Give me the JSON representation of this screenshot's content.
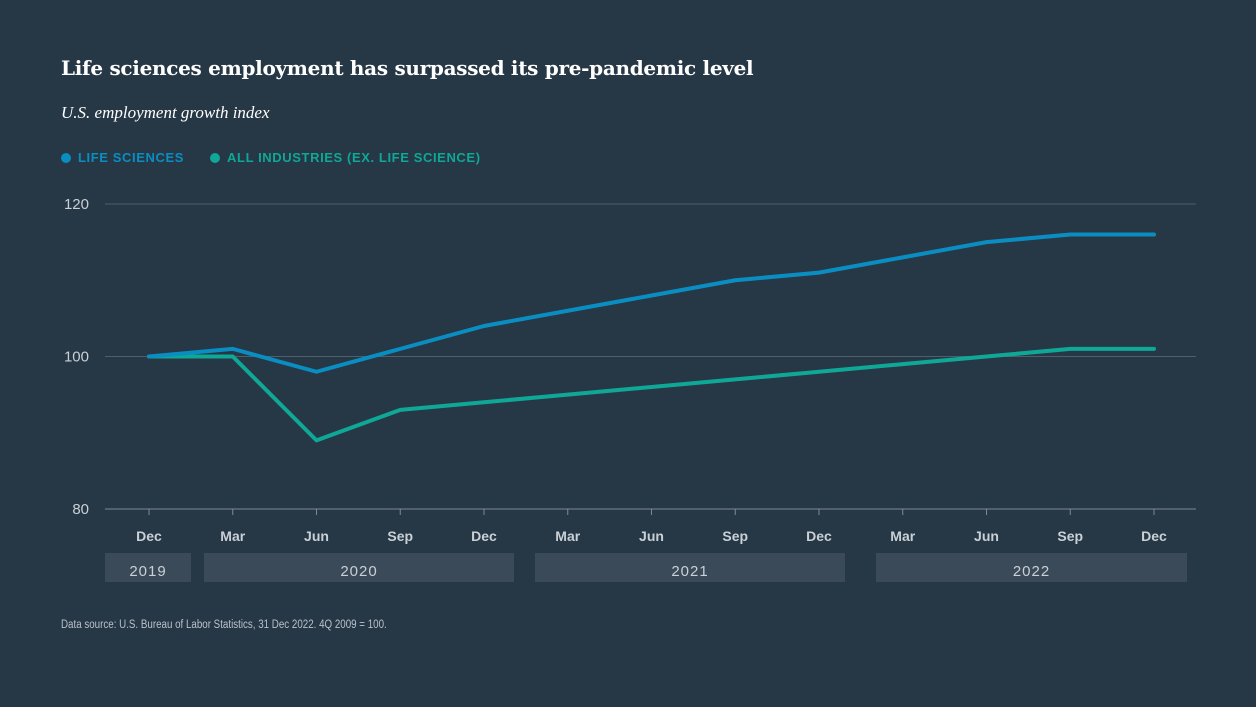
{
  "title": "Life sciences employment has surpassed its pre-pandemic level",
  "subtitle": "U.S. employment growth index",
  "source": "Data source: U.S. Bureau of Labor Statistics, 31 Dec 2022. 4Q 2009 = 100.",
  "colors": {
    "life_sciences": "#0a8ec2",
    "all_industries": "#0fa796",
    "background": "#263746",
    "year_band": "#3a4a58"
  },
  "chart_data": {
    "type": "line",
    "title": "Life sciences employment has surpassed its pre-pandemic level",
    "subtitle": "U.S. employment growth index",
    "categories": [
      "Dec",
      "Mar",
      "Jun",
      "Sep",
      "Dec",
      "Mar",
      "Jun",
      "Sep",
      "Dec",
      "Mar",
      "Jun",
      "Sep",
      "Dec"
    ],
    "year_groups": [
      {
        "label": "2019",
        "start": 0,
        "end": 0
      },
      {
        "label": "2020",
        "start": 1,
        "end": 4
      },
      {
        "label": "2021",
        "start": 5,
        "end": 8
      },
      {
        "label": "2022",
        "start": 9,
        "end": 12
      }
    ],
    "series": [
      {
        "name": "LIFE SCIENCES",
        "color": "#0a8ec2",
        "values": [
          100,
          101,
          98,
          101,
          104,
          106,
          108,
          110,
          111,
          113,
          115,
          116,
          116
        ]
      },
      {
        "name": "ALL INDUSTRIES (EX. LIFE SCIENCE)",
        "color": "#0fa796",
        "values": [
          100,
          100,
          89,
          93,
          94,
          95,
          96,
          97,
          98,
          99,
          100,
          101,
          101
        ]
      }
    ],
    "ylim": [
      80,
      120
    ],
    "yticks": [
      80,
      100,
      120
    ],
    "grid": true,
    "legend_position": "top-left",
    "xlabel": "",
    "ylabel": ""
  }
}
